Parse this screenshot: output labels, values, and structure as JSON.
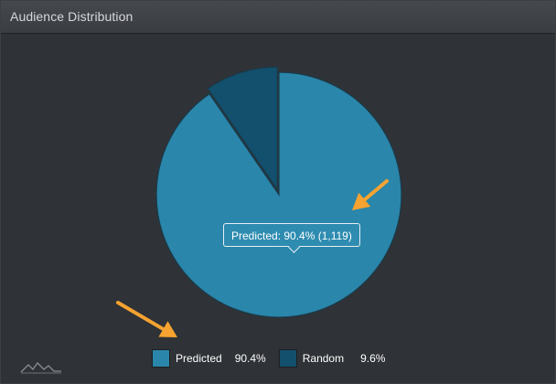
{
  "header": {
    "title": "Audience Distribution"
  },
  "tooltip": {
    "text": "Predicted: 90.4% (1,119)"
  },
  "legend": {
    "items": [
      {
        "label": "Predicted",
        "value": "90.4%",
        "color": "#2a86aa"
      },
      {
        "label": "Random",
        "value": "9.6%",
        "color": "#12506d"
      }
    ]
  },
  "colors": {
    "background": "#2f3236",
    "annotation_arrow": "#f6a331",
    "slice_stroke": "#1a3a4a"
  },
  "icons": {
    "logo": "mountain-wave-logo-icon",
    "arrows": "annotation-arrow-icon"
  },
  "chart_data": {
    "type": "pie",
    "title": "",
    "categories": [
      "Predicted",
      "Random"
    ],
    "values": [
      90.4,
      9.6
    ],
    "counts": [
      "1,119",
      ""
    ],
    "legend_position": "bottom"
  }
}
